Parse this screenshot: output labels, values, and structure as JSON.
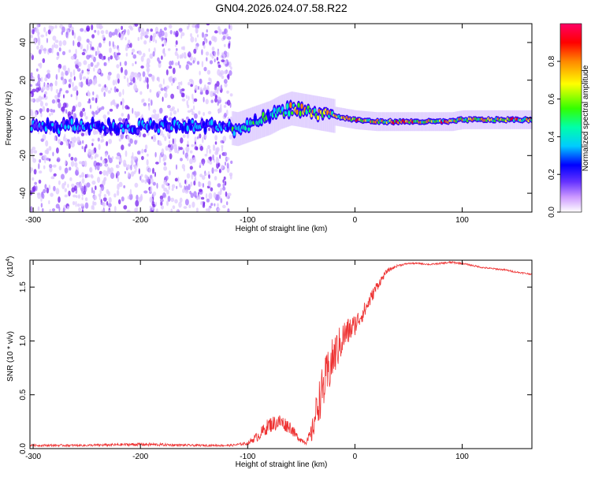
{
  "figure_title": "GN04.2026.024.07.58.R22",
  "colors": {
    "snr_line": "#ee3333",
    "axes": "#000000",
    "background": "#ffffff"
  },
  "chart_data": [
    {
      "type": "heatmap",
      "name": "spectrogram",
      "xlabel": "Height of straight line (km)",
      "ylabel": "Frequency (Hz)",
      "xlim": [
        -303,
        165
      ],
      "ylim": [
        -50,
        50
      ],
      "x_ticks": [
        -300,
        -200,
        -100,
        0,
        100
      ],
      "y_ticks": [
        40,
        20,
        0,
        -20,
        -40
      ],
      "x_tick_labels": [
        "-300",
        "-200",
        "-100",
        "0",
        "100"
      ],
      "y_tick_labels": [
        "40",
        "20",
        "0",
        "-20",
        "-40"
      ],
      "noise_cutoff_km": -115,
      "ridge_x_km": [
        -303,
        -250,
        -200,
        -150,
        -120,
        -110,
        -100,
        -90,
        -80,
        -70,
        -60,
        -50,
        -40,
        -30,
        -20,
        -10,
        0,
        20,
        40,
        60,
        80,
        90,
        100,
        130,
        165
      ],
      "ridge_freq_hz": [
        -5,
        -4,
        -5,
        -4,
        -5,
        -6,
        -4,
        -2,
        0,
        3,
        5,
        4,
        3,
        2,
        1,
        0,
        -1,
        -2,
        -2,
        -2,
        -2,
        -2,
        -1,
        -1,
        -1
      ],
      "colorbar": {
        "label": "Normalized spectral amplitude",
        "range": [
          0,
          1
        ],
        "ticks": [
          0.0,
          0.2,
          0.4,
          0.6,
          0.8
        ],
        "tick_labels": [
          "0.0",
          "0.2",
          "0.4",
          "0.6",
          "0.8"
        ],
        "colormap": [
          "#ffffff",
          "#9966ff",
          "#3300ff",
          "#0000ff",
          "#00ffff",
          "#00ff00",
          "#ffff00",
          "#ff8800",
          "#ff0000",
          "#ff0066"
        ]
      }
    },
    {
      "type": "line",
      "name": "snr",
      "xlabel": "Height of straight line (km)",
      "ylabel": "SNR (10 * v/v)",
      "multiplier_label": "(x10",
      "multiplier_exponent": "4",
      "multiplier_close": ")",
      "xlim": [
        -303,
        165
      ],
      "ylim": [
        0,
        1.75
      ],
      "x_ticks": [
        -300,
        -200,
        -100,
        0,
        100
      ],
      "x_tick_labels": [
        "-300",
        "-200",
        "-100",
        "0",
        "100"
      ],
      "y_ticks": [
        0.0,
        0.5,
        1.0,
        1.5
      ],
      "y_tick_labels": [
        "0.0",
        "0.5",
        "1.0",
        "1.5"
      ],
      "envelope_x": [
        -303,
        -250,
        -200,
        -150,
        -115,
        -100,
        -90,
        -80,
        -70,
        -60,
        -55,
        -50,
        -45,
        -40,
        -35,
        -30,
        -25,
        -20,
        -15,
        -10,
        -5,
        0,
        10,
        20,
        30,
        40,
        50,
        60,
        70,
        80,
        90,
        100,
        110,
        120,
        130,
        140,
        150,
        165
      ],
      "envelope_y": [
        0.03,
        0.03,
        0.04,
        0.03,
        0.03,
        0.05,
        0.12,
        0.22,
        0.25,
        0.2,
        0.12,
        0.08,
        0.06,
        0.15,
        0.4,
        0.55,
        0.7,
        0.85,
        0.95,
        1.05,
        1.1,
        1.15,
        1.3,
        1.5,
        1.65,
        1.7,
        1.72,
        1.72,
        1.71,
        1.72,
        1.73,
        1.72,
        1.7,
        1.68,
        1.67,
        1.66,
        1.64,
        1.62
      ],
      "noise_amplitude": [
        0.02,
        0.02,
        0.03,
        0.02,
        0.02,
        0.03,
        0.1,
        0.15,
        0.15,
        0.12,
        0.08,
        0.05,
        0.05,
        0.2,
        0.35,
        0.45,
        0.45,
        0.4,
        0.35,
        0.3,
        0.25,
        0.2,
        0.15,
        0.1,
        0.04,
        0.02,
        0.015,
        0.015,
        0.015,
        0.015,
        0.02,
        0.015,
        0.015,
        0.015,
        0.015,
        0.015,
        0.015,
        0.015
      ]
    }
  ]
}
